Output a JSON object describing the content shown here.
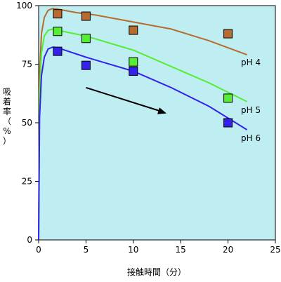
{
  "chart_data": {
    "type": "line",
    "xlabel": "接触時間（分）",
    "ylabel_chars": [
      "吸",
      "着",
      "率",
      "（",
      "%",
      "）"
    ],
    "xlim": [
      0,
      25
    ],
    "ylim": [
      0,
      100
    ],
    "x_ticks": [
      0,
      5,
      10,
      15,
      20,
      25
    ],
    "y_ticks": [
      0,
      25,
      50,
      75,
      100
    ],
    "grid": false,
    "colors": {
      "plot_background": "#bfeef2",
      "pH4": "#b86b2e",
      "pH5": "#55ee33",
      "pH6": "#3322ee",
      "marker_edge": "#000000"
    },
    "series": [
      {
        "name": "pH 4",
        "curve": [
          [
            0,
            0
          ],
          [
            0.1,
            70
          ],
          [
            0.3,
            88
          ],
          [
            0.6,
            95
          ],
          [
            1,
            98
          ],
          [
            1.5,
            98.8
          ],
          [
            2,
            98.5
          ],
          [
            4,
            97
          ],
          [
            6,
            96
          ],
          [
            10,
            93
          ],
          [
            14,
            90
          ],
          [
            18,
            85
          ],
          [
            22,
            79
          ]
        ],
        "points": [
          [
            2,
            96.5
          ],
          [
            5,
            95.5
          ],
          [
            10,
            89.5
          ],
          [
            20,
            88
          ]
        ]
      },
      {
        "name": "pH 5",
        "curve": [
          [
            0,
            0
          ],
          [
            0.1,
            62
          ],
          [
            0.3,
            80
          ],
          [
            0.6,
            87
          ],
          [
            1,
            89.5
          ],
          [
            1.5,
            90
          ],
          [
            2,
            89.5
          ],
          [
            5,
            87
          ],
          [
            10,
            81
          ],
          [
            14,
            74
          ],
          [
            18,
            67
          ],
          [
            22,
            59
          ]
        ],
        "points": [
          [
            2,
            89
          ],
          [
            5,
            86
          ],
          [
            10,
            76
          ],
          [
            20,
            60.5
          ]
        ]
      },
      {
        "name": "pH 6",
        "curve": [
          [
            0,
            0
          ],
          [
            0.1,
            52
          ],
          [
            0.3,
            70
          ],
          [
            0.6,
            78
          ],
          [
            1,
            81.5
          ],
          [
            1.5,
            82.3
          ],
          [
            2,
            82
          ],
          [
            5,
            78
          ],
          [
            10,
            72
          ],
          [
            14,
            65
          ],
          [
            18,
            57
          ],
          [
            22,
            47
          ]
        ],
        "points": [
          [
            2,
            80.5
          ],
          [
            5,
            74.5
          ],
          [
            10,
            72
          ],
          [
            20,
            50
          ]
        ]
      }
    ],
    "arrow": {
      "from": [
        5,
        65
      ],
      "to": [
        13.5,
        54
      ]
    }
  }
}
